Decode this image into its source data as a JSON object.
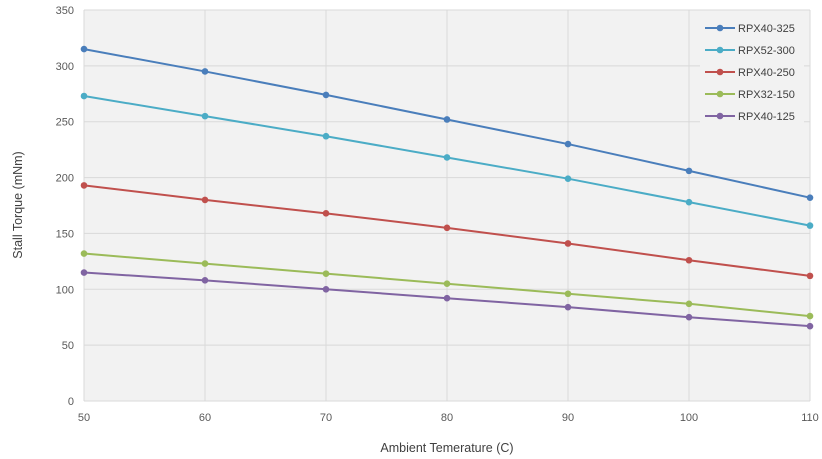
{
  "chart_data": {
    "type": "line",
    "title": "",
    "xlabel": "Ambient Temerature (C)",
    "ylabel": "Stall Torque (mNm)",
    "x": [
      50,
      60,
      70,
      80,
      90,
      100,
      110
    ],
    "xlim": [
      50,
      110
    ],
    "ylim": [
      0,
      350
    ],
    "xticks": [
      50,
      60,
      70,
      80,
      90,
      100,
      110
    ],
    "yticks": [
      0,
      50,
      100,
      150,
      200,
      250,
      300,
      350
    ],
    "grid": true,
    "legend_position": "top-right",
    "series": [
      {
        "name": "RPX40-325",
        "color": "#4a7ebb",
        "values": [
          315,
          295,
          274,
          252,
          230,
          206,
          182
        ]
      },
      {
        "name": "RPX52-300",
        "color": "#4bacc6",
        "values": [
          273,
          255,
          237,
          218,
          199,
          178,
          157
        ]
      },
      {
        "name": "RPX40-250",
        "color": "#c0504d",
        "values": [
          193,
          180,
          168,
          155,
          141,
          126,
          112
        ]
      },
      {
        "name": "RPX32-150",
        "color": "#9bbb59",
        "values": [
          132,
          123,
          114,
          105,
          96,
          87,
          76
        ]
      },
      {
        "name": "RPX40-125",
        "color": "#8064a2",
        "values": [
          115,
          108,
          100,
          92,
          84,
          75,
          67
        ]
      }
    ]
  }
}
